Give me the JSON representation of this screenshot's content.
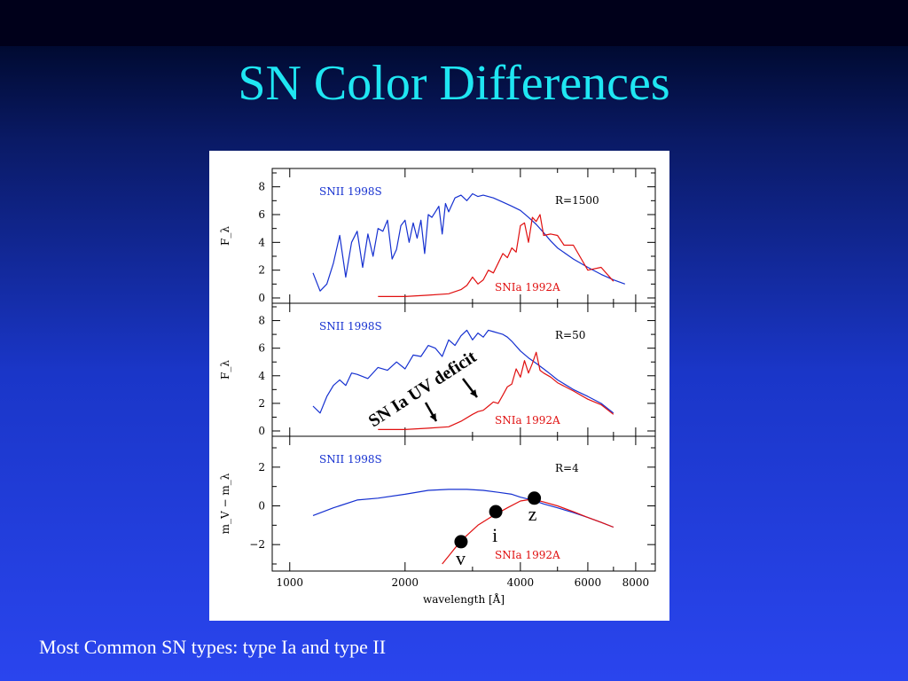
{
  "slide": {
    "title": "SN Color Differences",
    "caption": "Most Common SN types: type Ia and type II"
  },
  "chart_data": [
    {
      "panel": "top",
      "type": "line",
      "resolution_label": "R=1500",
      "ylabel": "F_λ",
      "ylim": [
        0,
        9
      ],
      "yticks": [
        0,
        2,
        4,
        6,
        8
      ],
      "xscale": "log",
      "xlim": [
        900,
        9000
      ],
      "series": [
        {
          "name": "SNII 1998S",
          "color": "#1530d0",
          "x": [
            1150,
            1200,
            1250,
            1300,
            1350,
            1400,
            1450,
            1500,
            1550,
            1600,
            1650,
            1700,
            1750,
            1800,
            1850,
            1900,
            1950,
            2000,
            2050,
            2100,
            2150,
            2200,
            2250,
            2300,
            2350,
            2400,
            2450,
            2500,
            2550,
            2600,
            2700,
            2800,
            2900,
            3000,
            3100,
            3200,
            3400,
            3600,
            3800,
            4000,
            4200,
            4400,
            4600,
            4800,
            5000,
            5500,
            6000,
            6500,
            7000,
            7500
          ],
          "y": [
            1.8,
            0.5,
            1.0,
            2.5,
            4.5,
            1.5,
            4.0,
            4.8,
            2.2,
            4.6,
            3.0,
            5.0,
            4.8,
            5.6,
            2.8,
            3.5,
            5.2,
            5.6,
            4.0,
            5.4,
            4.3,
            5.6,
            3.2,
            6.0,
            5.8,
            6.2,
            6.6,
            4.6,
            6.8,
            6.2,
            7.2,
            7.4,
            7.0,
            7.5,
            7.3,
            7.4,
            7.2,
            6.9,
            6.6,
            6.3,
            5.8,
            5.3,
            4.7,
            4.1,
            3.6,
            2.8,
            2.2,
            1.7,
            1.3,
            1.0
          ]
        },
        {
          "name": "SNIa 1992A",
          "color": "#e01010",
          "x": [
            1700,
            2000,
            2300,
            2600,
            2800,
            2900,
            3000,
            3100,
            3200,
            3300,
            3400,
            3500,
            3600,
            3700,
            3800,
            3900,
            4000,
            4100,
            4200,
            4300,
            4400,
            4500,
            4600,
            4800,
            5000,
            5200,
            5500,
            6000,
            6500,
            7000
          ],
          "y": [
            0.1,
            0.1,
            0.2,
            0.3,
            0.6,
            0.9,
            1.5,
            1.0,
            1.3,
            2.0,
            1.8,
            2.5,
            3.2,
            2.9,
            3.6,
            3.3,
            5.2,
            5.4,
            4.0,
            5.8,
            5.5,
            6.0,
            4.5,
            4.6,
            4.5,
            3.8,
            3.8,
            2.0,
            2.2,
            1.2
          ]
        }
      ]
    },
    {
      "panel": "middle",
      "type": "line",
      "resolution_label": "R=50",
      "ylabel": "F_λ",
      "ylim": [
        0,
        9
      ],
      "yticks": [
        0,
        2,
        4,
        6,
        8
      ],
      "xscale": "log",
      "xlim": [
        900,
        9000
      ],
      "series": [
        {
          "name": "SNII 1998S",
          "color": "#1530d0",
          "x": [
            1150,
            1200,
            1250,
            1300,
            1350,
            1400,
            1450,
            1500,
            1600,
            1700,
            1800,
            1900,
            2000,
            2100,
            2200,
            2300,
            2400,
            2500,
            2600,
            2700,
            2800,
            2900,
            3000,
            3100,
            3200,
            3300,
            3400,
            3500,
            3600,
            3700,
            3800,
            4000,
            4200,
            4400,
            4600,
            4800,
            5000,
            5500,
            6000,
            6500,
            7000
          ],
          "y": [
            1.8,
            1.3,
            2.5,
            3.3,
            3.7,
            3.3,
            4.2,
            4.1,
            3.8,
            4.6,
            4.4,
            5.0,
            4.5,
            5.5,
            5.4,
            6.2,
            6.0,
            5.4,
            6.6,
            6.2,
            6.9,
            7.3,
            6.6,
            7.1,
            6.8,
            7.3,
            7.2,
            7.1,
            7.0,
            6.8,
            6.5,
            5.8,
            5.3,
            4.9,
            4.5,
            4.1,
            3.7,
            3.0,
            2.5,
            2.0,
            1.3
          ]
        },
        {
          "name": "SNIa 1992A",
          "color": "#e01010",
          "x": [
            1700,
            2000,
            2300,
            2600,
            2800,
            3000,
            3100,
            3200,
            3300,
            3400,
            3500,
            3600,
            3700,
            3800,
            3900,
            4000,
            4100,
            4200,
            4300,
            4400,
            4500,
            4600,
            4800,
            5000,
            5500,
            6000,
            6500,
            7000
          ],
          "y": [
            0.1,
            0.1,
            0.2,
            0.3,
            0.7,
            1.2,
            1.4,
            1.5,
            1.8,
            2.1,
            2.0,
            2.6,
            3.2,
            3.4,
            4.5,
            3.9,
            5.1,
            4.2,
            4.9,
            5.7,
            4.4,
            4.2,
            3.9,
            3.5,
            2.9,
            2.3,
            1.9,
            1.2
          ]
        }
      ],
      "annotation": "SN Ia UV deficit"
    },
    {
      "panel": "bottom",
      "type": "line",
      "resolution_label": "R=4",
      "ylabel": "m_V − m_λ",
      "ylim": [
        -3,
        3
      ],
      "yticks": [
        -2,
        0,
        2
      ],
      "xscale": "log",
      "xlim": [
        900,
        9000
      ],
      "xticks": [
        1000,
        2000,
        4000,
        6000,
        8000
      ],
      "xlabel": "wavelength [Å]",
      "series": [
        {
          "name": "SNII 1998S",
          "color": "#1530d0",
          "x": [
            1150,
            1300,
            1500,
            1700,
            2000,
            2300,
            2600,
            2900,
            3200,
            3500,
            3800,
            4000,
            4300,
            4600,
            5000,
            5500,
            6000,
            6500,
            7000
          ],
          "y": [
            -0.5,
            -0.1,
            0.3,
            0.4,
            0.6,
            0.8,
            0.85,
            0.85,
            0.8,
            0.7,
            0.6,
            0.45,
            0.3,
            0.1,
            -0.1,
            -0.35,
            -0.6,
            -0.85,
            -1.1
          ]
        },
        {
          "name": "SNIa 1992A",
          "color": "#e01010",
          "x": [
            2500,
            2800,
            3100,
            3400,
            3700,
            4000,
            4300,
            4600,
            5000,
            5500,
            6000,
            6500,
            7000
          ],
          "y": [
            -3.0,
            -1.8,
            -1.0,
            -0.5,
            -0.1,
            0.25,
            0.35,
            0.2,
            0.0,
            -0.3,
            -0.6,
            -0.85,
            -1.1
          ]
        }
      ],
      "filter_points": [
        {
          "label": "v",
          "x": 2800,
          "y": -1.85
        },
        {
          "label": "i",
          "x": 3450,
          "y": -0.3
        },
        {
          "label": "z",
          "x": 4350,
          "y": 0.4
        }
      ]
    }
  ]
}
